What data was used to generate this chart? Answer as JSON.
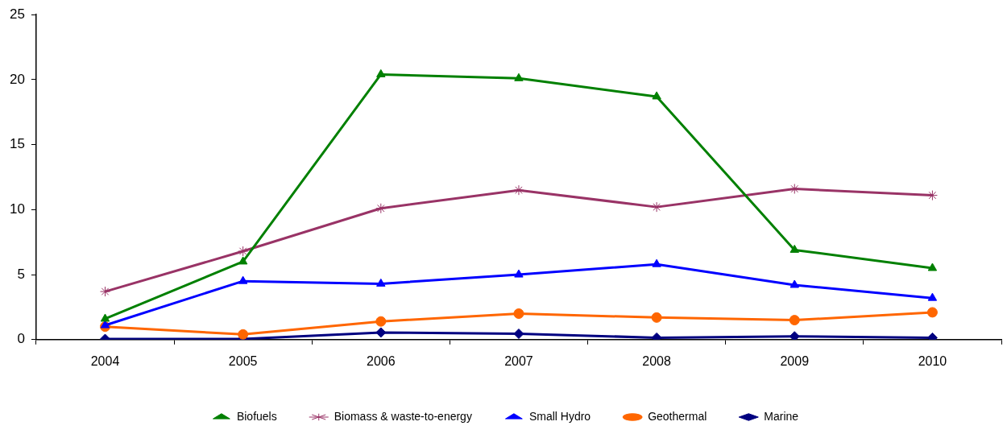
{
  "chart_data": {
    "type": "line",
    "categories": [
      "2004",
      "2005",
      "2006",
      "2007",
      "2008",
      "2009",
      "2010"
    ],
    "series": [
      {
        "name": "Biofuels",
        "color": "#008000",
        "marker": "triangle",
        "values": [
          1.6,
          6.0,
          20.4,
          20.1,
          18.7,
          6.9,
          5.5
        ]
      },
      {
        "name": "Biomass & waste-to-energy",
        "color": "#993366",
        "marker": "cross",
        "values": [
          3.7,
          6.8,
          10.1,
          11.5,
          10.2,
          11.6,
          11.1
        ]
      },
      {
        "name": "Small Hydro",
        "color": "#0000ff",
        "marker": "triangle",
        "values": [
          1.1,
          4.5,
          4.3,
          5.0,
          5.8,
          4.2,
          3.2
        ]
      },
      {
        "name": "Geothermal",
        "color": "#ff6600",
        "marker": "circle",
        "values": [
          1.0,
          0.4,
          1.4,
          2.0,
          1.7,
          1.5,
          2.1
        ]
      },
      {
        "name": "Marine",
        "color": "#000080",
        "marker": "diamond",
        "values": [
          0.05,
          0.05,
          0.55,
          0.45,
          0.15,
          0.25,
          0.15
        ]
      }
    ],
    "ylim": [
      0,
      25
    ],
    "yticks": [
      0,
      5,
      10,
      15,
      20,
      25
    ],
    "grid": false,
    "legend": "bottom",
    "line_style": "solid"
  }
}
